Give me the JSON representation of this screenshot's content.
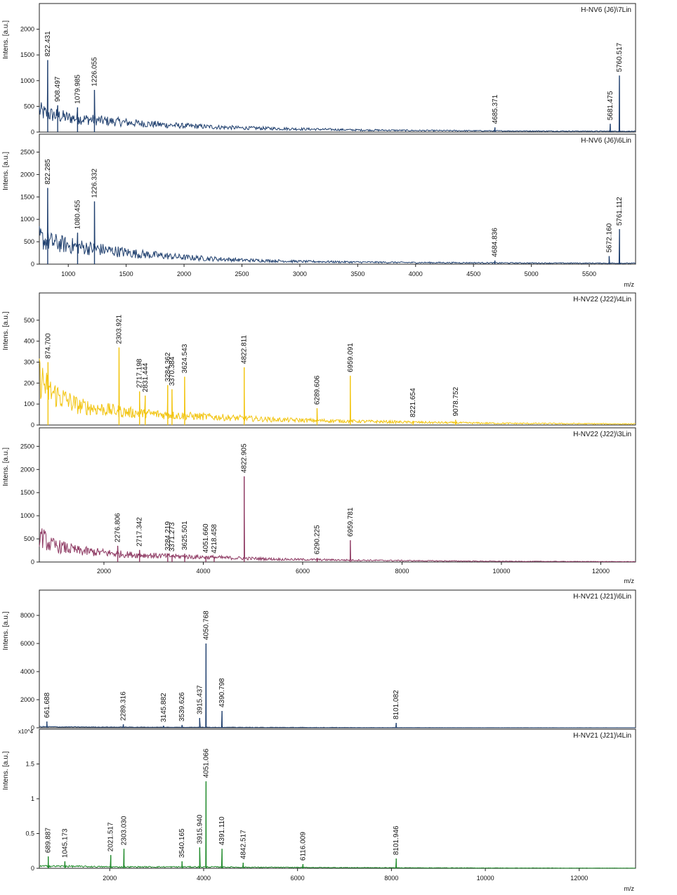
{
  "panel_groups": [
    {
      "xlabel": "m/z",
      "xlim": [
        750,
        5900
      ],
      "xticks": [
        1000,
        1500,
        2000,
        2500,
        3000,
        3500,
        4000,
        4500,
        5000,
        5500
      ]
    },
    {
      "xlabel": "m/z",
      "xlim": [
        700,
        12700
      ],
      "xticks": [
        2000,
        4000,
        6000,
        8000,
        10000,
        12000
      ]
    },
    {
      "xlabel": "m/z",
      "xlim": [
        500,
        13200
      ],
      "xticks": [
        2000,
        4000,
        6000,
        8000,
        10000,
        12000
      ]
    }
  ],
  "chart_data": [
    {
      "type": "line",
      "title": "H-NV6 (J6)\\7Lin",
      "ylabel": "Intens. [a.u.]",
      "ylim": [
        0,
        2500
      ],
      "yticks": [
        0,
        500,
        1000,
        1500,
        2000
      ],
      "color": "#1f3f6e",
      "baseline": {
        "x": [
          750,
          800,
          1000,
          1300,
          1600,
          2000,
          2500,
          3000,
          3500,
          4000,
          5000,
          5900
        ],
        "y": [
          420,
          360,
          280,
          220,
          170,
          120,
          80,
          60,
          40,
          30,
          20,
          15
        ]
      },
      "peaks": [
        {
          "x": 822.431,
          "y": 1400,
          "label": "822.431"
        },
        {
          "x": 908.497,
          "y": 520,
          "label": "908.497"
        },
        {
          "x": 1079.985,
          "y": 480,
          "label": "1079.985"
        },
        {
          "x": 1226.055,
          "y": 820,
          "label": "1226.055"
        },
        {
          "x": 4685.371,
          "y": 90,
          "label": "4685.371"
        },
        {
          "x": 5681.475,
          "y": 160,
          "label": "5681.475"
        },
        {
          "x": 5760.517,
          "y": 1100,
          "label": "5760.517"
        }
      ]
    },
    {
      "type": "line",
      "title": "H-NV6 (J6)\\6Lin",
      "ylabel": "Intens. [a.u.]",
      "ylim": [
        0,
        2900
      ],
      "yticks": [
        0,
        500,
        1000,
        1500,
        2000,
        2500
      ],
      "color": "#1f3f6e",
      "baseline": {
        "x": [
          750,
          800,
          1000,
          1300,
          1600,
          2000,
          2500,
          3000,
          3500,
          4000,
          5000,
          5900
        ],
        "y": [
          600,
          520,
          420,
          320,
          230,
          150,
          90,
          60,
          45,
          35,
          25,
          20
        ]
      },
      "peaks": [
        {
          "x": 822.285,
          "y": 1700,
          "label": "822.285"
        },
        {
          "x": 1080.455,
          "y": 700,
          "label": "1080.455"
        },
        {
          "x": 1226.332,
          "y": 1400,
          "label": "1226.332"
        },
        {
          "x": 4684.836,
          "y": 80,
          "label": "4684.836"
        },
        {
          "x": 5672.16,
          "y": 180,
          "label": "5672.160"
        },
        {
          "x": 5761.112,
          "y": 780,
          "label": "5761.112"
        }
      ]
    },
    {
      "type": "line",
      "title": "H-NV22 (J22)\\4Lin",
      "ylabel": "Intens. [a.u.]",
      "ylim": [
        0,
        630
      ],
      "yticks": [
        0,
        100,
        200,
        300,
        400,
        500
      ],
      "color": "#f2c40f",
      "baseline": {
        "x": [
          700,
          900,
          1500,
          2500,
          3500,
          4500,
          5500,
          7000,
          8500,
          10000,
          12700
        ],
        "y": [
          230,
          160,
          90,
          60,
          45,
          35,
          25,
          18,
          12,
          8,
          5
        ]
      },
      "peaks": [
        {
          "x": 874.7,
          "y": 300,
          "label": "874.700"
        },
        {
          "x": 2303.921,
          "y": 370,
          "label": "2303.921"
        },
        {
          "x": 2717.198,
          "y": 160,
          "label": "2717.198"
        },
        {
          "x": 2831.444,
          "y": 140,
          "label": "2831.444"
        },
        {
          "x": 3284.362,
          "y": 190,
          "label": "3284.362"
        },
        {
          "x": 3370.384,
          "y": 170,
          "label": "3370.384"
        },
        {
          "x": 3624.543,
          "y": 230,
          "label": "3624.543"
        },
        {
          "x": 4822.811,
          "y": 275,
          "label": "4822.811"
        },
        {
          "x": 6289.606,
          "y": 80,
          "label": "6289.606"
        },
        {
          "x": 6959.091,
          "y": 235,
          "label": "6959.091"
        },
        {
          "x": 8221.654,
          "y": 20,
          "label": "8221.654"
        },
        {
          "x": 9078.752,
          "y": 25,
          "label": "9078.752"
        }
      ]
    },
    {
      "type": "line",
      "title": "H-NV22 (J22)\\3Lin",
      "ylabel": "Intens. [a.u.]",
      "ylim": [
        0,
        2900
      ],
      "yticks": [
        0,
        500,
        1000,
        1500,
        2000,
        2500
      ],
      "color": "#8e3a63",
      "baseline": {
        "x": [
          700,
          900,
          1500,
          2500,
          3500,
          4500,
          5500,
          7000,
          8500,
          10000,
          12700
        ],
        "y": [
          600,
          380,
          240,
          160,
          120,
          90,
          60,
          40,
          25,
          15,
          8
        ]
      },
      "peaks": [
        {
          "x": 2276.806,
          "y": 350,
          "label": "2276.806"
        },
        {
          "x": 2717.342,
          "y": 260,
          "label": "2717.342"
        },
        {
          "x": 3284.219,
          "y": 170,
          "label": "3284.219"
        },
        {
          "x": 3371.273,
          "y": 150,
          "label": "3371.273"
        },
        {
          "x": 3625.501,
          "y": 180,
          "label": "3625.501"
        },
        {
          "x": 4051.66,
          "y": 120,
          "label": "4051.660"
        },
        {
          "x": 4218.458,
          "y": 110,
          "label": "4218.458"
        },
        {
          "x": 4822.905,
          "y": 1850,
          "label": "4822.905"
        },
        {
          "x": 6290.225,
          "y": 90,
          "label": "6290.225"
        },
        {
          "x": 6959.781,
          "y": 470,
          "label": "6959.781"
        }
      ]
    },
    {
      "type": "line",
      "title": "H-NV21 (J21)\\6Lin",
      "ylabel": "Intens. [a.u.]",
      "ylim": [
        0,
        9800
      ],
      "yticks": [
        0,
        2000,
        4000,
        6000,
        8000
      ],
      "color": "#1f3f6e",
      "baseline": {
        "x": [
          500,
          1000,
          2000,
          3000,
          4000,
          5000,
          7000,
          10000,
          13200
        ],
        "y": [
          80,
          60,
          50,
          40,
          40,
          30,
          20,
          10,
          5
        ]
      },
      "peaks": [
        {
          "x": 661.688,
          "y": 450,
          "label": "661.688"
        },
        {
          "x": 2289.316,
          "y": 250,
          "label": "2289.316"
        },
        {
          "x": 3145.882,
          "y": 150,
          "label": "3145.882"
        },
        {
          "x": 3539.626,
          "y": 200,
          "label": "3539.626"
        },
        {
          "x": 3915.437,
          "y": 700,
          "label": "3915.437"
        },
        {
          "x": 4050.768,
          "y": 6000,
          "label": "4050.768"
        },
        {
          "x": 4390.798,
          "y": 1200,
          "label": "4390.798"
        },
        {
          "x": 8101.082,
          "y": 350,
          "label": "8101.082"
        }
      ]
    },
    {
      "type": "line",
      "title": "H-NV21 (J21)\\4Lin",
      "ylabel": "Intens. [a.u.]",
      "yexponent": "x10^4",
      "ylim": [
        0,
        2.0
      ],
      "yticks": [
        0.0,
        0.5,
        1.0,
        1.5
      ],
      "color": "#1f8a2a",
      "baseline": {
        "x": [
          500,
          1000,
          2000,
          3000,
          4000,
          5000,
          7000,
          10000,
          13200
        ],
        "y": [
          0.03,
          0.03,
          0.02,
          0.02,
          0.02,
          0.015,
          0.01,
          0.005,
          0.003
        ]
      },
      "peaks": [
        {
          "x": 689.887,
          "y": 0.17,
          "label": "689.887"
        },
        {
          "x": 1045.173,
          "y": 0.1,
          "label": "1045.173"
        },
        {
          "x": 2021.517,
          "y": 0.19,
          "label": "2021.517"
        },
        {
          "x": 2303.03,
          "y": 0.28,
          "label": "2303.030"
        },
        {
          "x": 3540.165,
          "y": 0.1,
          "label": "3540.165"
        },
        {
          "x": 3915.94,
          "y": 0.3,
          "label": "3915.940"
        },
        {
          "x": 4051.066,
          "y": 1.25,
          "label": "4051.066"
        },
        {
          "x": 4391.11,
          "y": 0.28,
          "label": "4391.110"
        },
        {
          "x": 4842.517,
          "y": 0.08,
          "label": "4842.517"
        },
        {
          "x": 6116.009,
          "y": 0.06,
          "label": "6116.009"
        },
        {
          "x": 8101.946,
          "y": 0.14,
          "label": "8101.946"
        }
      ]
    }
  ]
}
